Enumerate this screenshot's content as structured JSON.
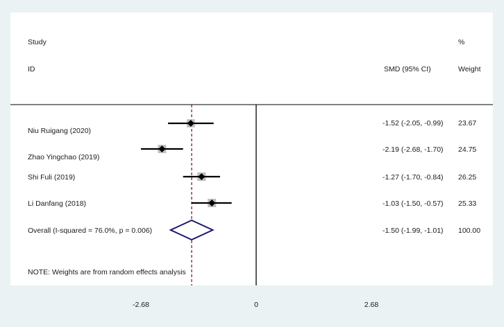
{
  "header": {
    "study_label": "Study",
    "id_label": "ID",
    "effect_label": "SMD (95% CI)",
    "pct_label": "%",
    "weight_label": "Weight"
  },
  "footnote": "NOTE: Weights are from random effects analysis",
  "chart_data": {
    "type": "forest",
    "measure": "SMD",
    "null_line": 0,
    "x_ticks": [
      "-2.68",
      "0",
      "2.68"
    ],
    "xlim": [
      -2.68,
      2.68
    ],
    "studies": [
      {
        "name": "Niu Ruigang (2020)",
        "est": -1.52,
        "lo": -2.05,
        "hi": -0.99,
        "ci_text": "-1.52 (-2.05, -0.99)",
        "weight": "23.67"
      },
      {
        "name": "Zhao Yingchao (2019)",
        "est": -2.19,
        "lo": -2.68,
        "hi": -1.7,
        "ci_text": "-2.19 (-2.68, -1.70)",
        "weight": "24.75"
      },
      {
        "name": "Shi Fuli (2019)",
        "est": -1.27,
        "lo": -1.7,
        "hi": -0.84,
        "ci_text": "-1.27 (-1.70, -0.84)",
        "weight": "26.25"
      },
      {
        "name": "Li Danfang (2018)",
        "est": -1.03,
        "lo": -1.5,
        "hi": -0.57,
        "ci_text": "-1.03 (-1.50, -0.57)",
        "weight": "25.33"
      }
    ],
    "overall": {
      "name": "Overall  (I-squared = 76.0%, p = 0.006)",
      "est": -1.5,
      "lo": -1.99,
      "hi": -1.01,
      "ci_text": "-1.50 (-1.99, -1.01)",
      "weight": "100.00"
    },
    "colors": {
      "ci_line": "#000000",
      "weight_box": "#bfbfbf",
      "point": "#000000",
      "diamond": "#1a1a6e",
      "overall_line": "#8b1a1a",
      "axis": "#000000"
    }
  }
}
